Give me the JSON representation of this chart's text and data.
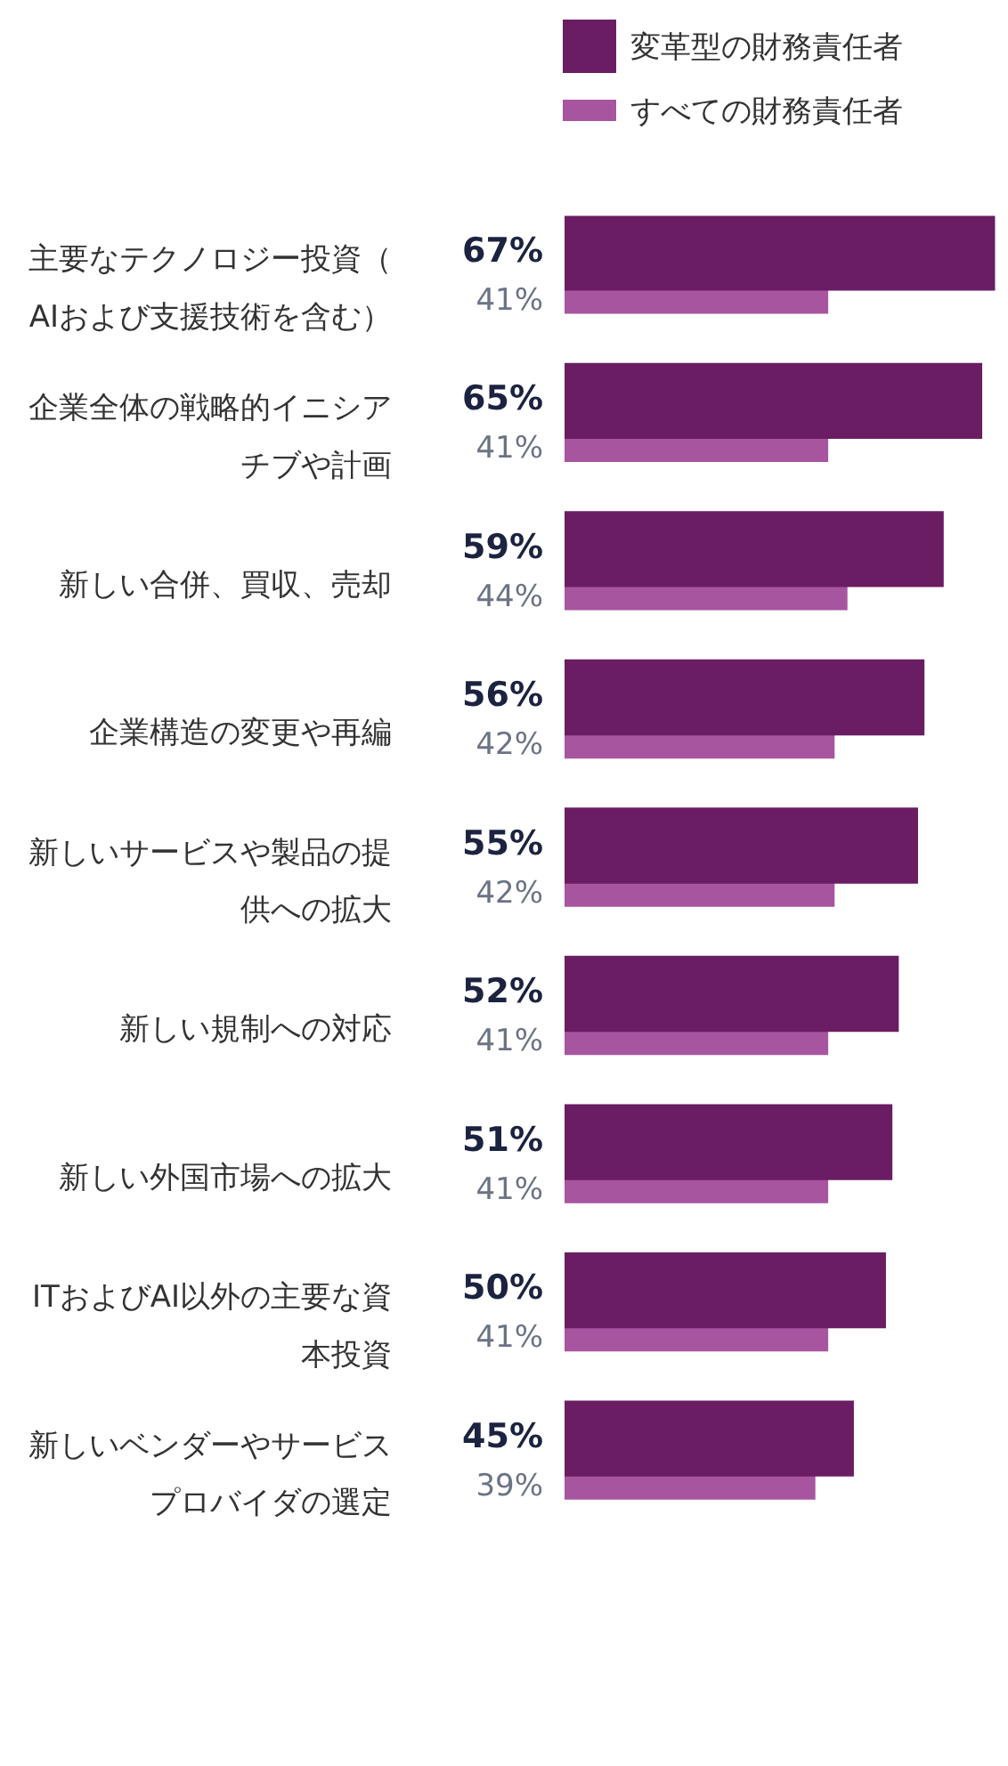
{
  "chart_data": {
    "type": "bar",
    "orientation": "horizontal",
    "categories": [
      "主要なテクノロジー投資（AIおよび支援技術を含む）",
      "企業全体の戦略的イニシアチブや計画",
      "新しい合併、買収、売却",
      "企業構造の変更や再編",
      "新しいサービスや製品の提供への拡大",
      "新しい規制への対応",
      "新しい外国市場への拡大",
      "ITおよびAI以外の主要な資本投資",
      "新しいベンダーやサービスプロバイダの選定"
    ],
    "series": [
      {
        "name": "変革型の財務責任者",
        "color": "#6a1d63",
        "values": [
          67,
          65,
          59,
          56,
          55,
          52,
          51,
          50,
          45
        ],
        "value_labels": [
          "67%",
          "65%",
          "59%",
          "56%",
          "55%",
          "52%",
          "51%",
          "50%",
          "45%"
        ]
      },
      {
        "name": "すべての財務責任者",
        "color": "#a855a0",
        "values": [
          41,
          41,
          44,
          42,
          42,
          41,
          41,
          41,
          39
        ],
        "value_labels": [
          "41%",
          "41%",
          "44%",
          "42%",
          "42%",
          "41%",
          "41%",
          "41%",
          "39%"
        ]
      }
    ],
    "xlim": [
      0,
      68
    ],
    "tick_labels": "y",
    "grid": false,
    "legend": "top left"
  }
}
